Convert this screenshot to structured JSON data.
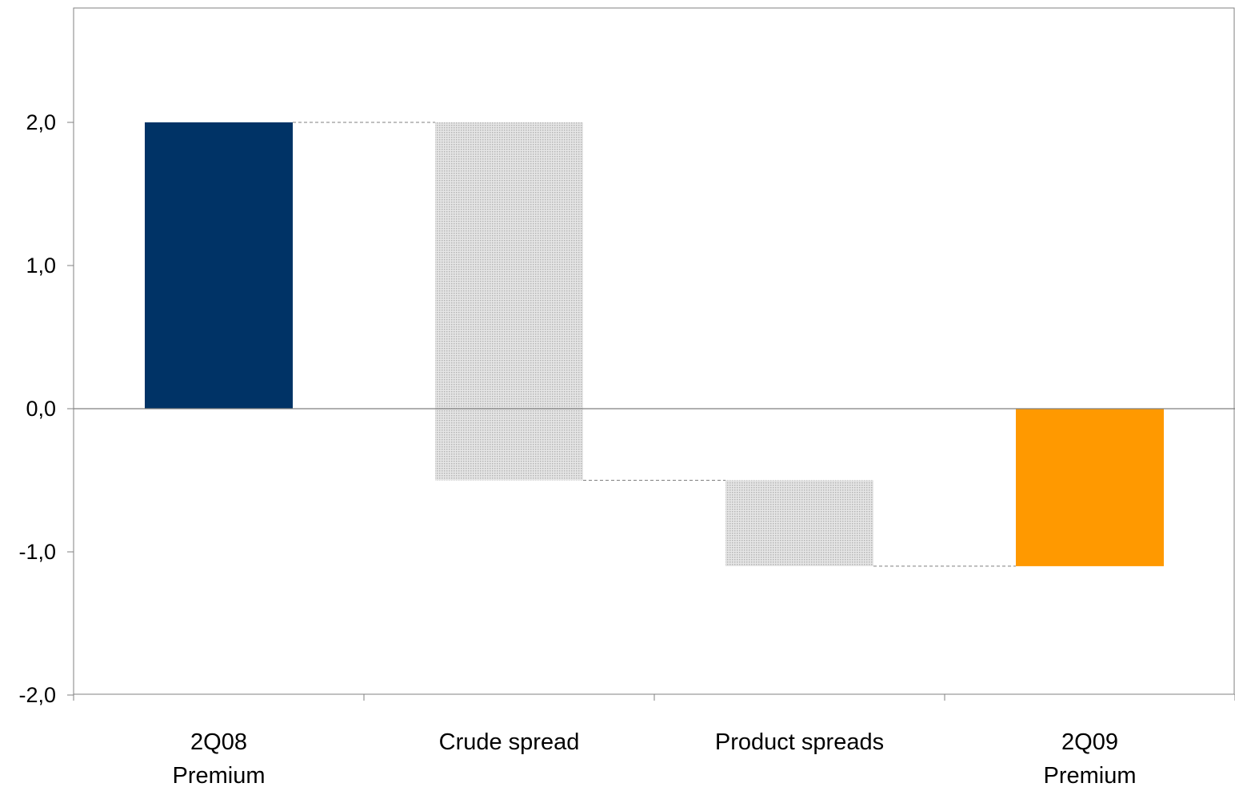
{
  "chart_data": {
    "type": "bar",
    "subtype": "waterfall",
    "categories": [
      [
        "2Q08",
        "Premium"
      ],
      [
        "Crude spread"
      ],
      [
        "Product spreads"
      ],
      [
        "2Q09",
        "Premium"
      ]
    ],
    "bars": [
      {
        "kind": "total",
        "start": 0,
        "end": 2.0,
        "color": "#003366"
      },
      {
        "kind": "change",
        "start": 2.0,
        "end": -0.5,
        "value": -2.5,
        "color": "#c8c8c8",
        "pattern": "dotted"
      },
      {
        "kind": "change",
        "start": -0.5,
        "end": -1.1,
        "value": -0.6,
        "color": "#c8c8c8",
        "pattern": "dotted"
      },
      {
        "kind": "total",
        "start": 0,
        "end": -1.1,
        "color": "#ff9900"
      }
    ],
    "yticks": [
      "2,0",
      "1,0",
      "0,0",
      "-1,0",
      "-2,0"
    ],
    "ytick_values": [
      2.0,
      1.0,
      0.0,
      -1.0,
      -2.0
    ],
    "ylim": [
      -2.0,
      2.8
    ],
    "grid": false,
    "connector_lines": "dashed",
    "title": "",
    "xlabel": "",
    "ylabel": ""
  }
}
